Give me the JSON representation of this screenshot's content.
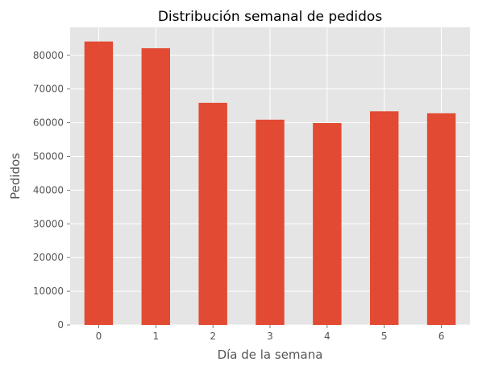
{
  "chart_data": {
    "type": "bar",
    "title": "Distribución semanal de pedidos",
    "xlabel": "Día de la semana",
    "ylabel": "Pedidos",
    "categories": [
      "0",
      "1",
      "2",
      "3",
      "4",
      "5",
      "6"
    ],
    "values": [
      84100,
      82100,
      65900,
      60900,
      59900,
      63400,
      62800
    ],
    "ylim": [
      0,
      88300
    ],
    "yticks": [
      0,
      10000,
      20000,
      30000,
      40000,
      50000,
      60000,
      70000,
      80000
    ],
    "grid": true,
    "colors": {
      "bar": "#E24A33",
      "plot_background": "#E5E5E5",
      "grid": "#FFFFFF",
      "text": "#555555",
      "title": "#000000"
    }
  }
}
